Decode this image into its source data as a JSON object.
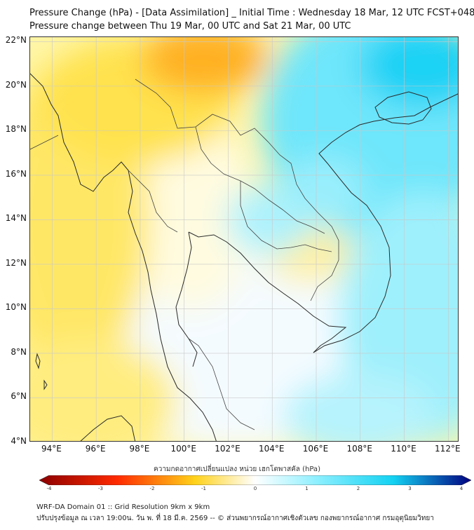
{
  "title_line1": "Pressure Change (hPa) - [Data Assimilation] _ Initial Time : Wednesday 18 Mar, 12 UTC FCST+048",
  "title_line2": "Pressure change between Thu 19 Mar, 00 UTC and Sat 21 Mar, 00 UTC",
  "map": {
    "lon_range": [
      93,
      112.5
    ],
    "lat_range": [
      4,
      22.2
    ],
    "lat_ticks": [
      "22°N",
      "20°N",
      "18°N",
      "16°N",
      "14°N",
      "12°N",
      "10°N",
      "8°N",
      "6°N",
      "4°N"
    ],
    "lat_values": [
      22,
      20,
      18,
      16,
      14,
      12,
      10,
      8,
      6,
      4
    ],
    "lon_ticks": [
      "94°E",
      "96°E",
      "98°E",
      "100°E",
      "102°E",
      "104°E",
      "106°E",
      "108°E",
      "110°E",
      "112°E"
    ],
    "lon_values": [
      94,
      96,
      98,
      100,
      102,
      104,
      106,
      108,
      110,
      112
    ],
    "grid": true
  },
  "legend": {
    "title": "ความกดอากาศเปลี่ยนแปลง หน่วย เฮกโตพาสคัล (hPa)",
    "range": [
      -4,
      4
    ],
    "ticks": [
      "-4",
      "-3",
      "-2",
      "-1",
      "0",
      "1",
      "2",
      "3",
      "4"
    ],
    "tick_values": [
      -4,
      -3,
      -2,
      -1,
      0,
      1,
      2,
      3,
      4
    ],
    "colors": {
      "neg_strong": "#8b0000",
      "neg_mid": "#ff2a00",
      "neg_light": "#ffd21a",
      "neutral": "#ffffff",
      "pos_light": "#8ff0ff",
      "pos_mid": "#13d2f2",
      "pos_strong": "#000080"
    }
  },
  "footer_line1": "WRF-DA Domain 01 :: Grid Resolution 9km x 9km",
  "footer_line2": "ปรับปรุงข้อมูล ณ เวลา 19:00น. วัน พ. ที่ 18 มี.ค. 2569 -- © ส่วนพยากรณ์อากาศเชิงตัวเลข กองพยากรณ์อากาศ กรมอุตุนิยมวิทยา"
}
